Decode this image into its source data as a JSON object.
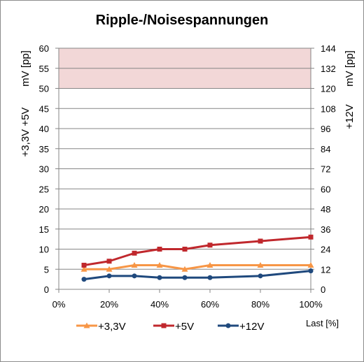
{
  "chart_data": {
    "type": "line",
    "title": "Ripple-/Noisespannungen",
    "xlabel": "Last [%]",
    "ylabel_left_line1": "+3,3V +5V",
    "ylabel_left_line2": "mV [pp]",
    "ylabel_right_line1": "+12V",
    "ylabel_right_line2": "mV [pp]",
    "xlim": [
      0,
      100
    ],
    "x_ticks": [
      "0%",
      "20%",
      "40%",
      "60%",
      "80%",
      "100%"
    ],
    "x_tick_values": [
      0,
      20,
      40,
      60,
      80,
      100
    ],
    "ylim_left": [
      0,
      60
    ],
    "y_ticks_left": [
      0,
      5,
      10,
      15,
      20,
      25,
      30,
      35,
      40,
      45,
      50,
      55,
      60
    ],
    "ylim_right": [
      0,
      144
    ],
    "y_ticks_right": [
      0,
      12,
      24,
      36,
      48,
      60,
      72,
      84,
      96,
      108,
      120,
      132,
      144
    ],
    "limit_band_left": [
      50,
      60
    ],
    "grid": true,
    "legend_position": "bottom",
    "series": [
      {
        "name": "+3,3V",
        "axis": "left",
        "color": "#f79646",
        "marker": "triangle",
        "x": [
          10,
          20,
          30,
          40,
          50,
          60,
          80,
          100
        ],
        "y": [
          5,
          5,
          6,
          6,
          5,
          6,
          6,
          6
        ]
      },
      {
        "name": "+5V",
        "axis": "left",
        "color": "#c0282d",
        "marker": "square",
        "x": [
          10,
          20,
          30,
          40,
          50,
          60,
          80,
          100
        ],
        "y": [
          6,
          7,
          9,
          10,
          10,
          11,
          12,
          13
        ]
      },
      {
        "name": "+12V",
        "axis": "right",
        "color": "#1f497d",
        "marker": "circle",
        "x": [
          10,
          20,
          30,
          40,
          50,
          60,
          80,
          100
        ],
        "y": [
          6,
          8,
          8,
          7,
          7,
          7,
          8,
          11
        ]
      }
    ],
    "colors": {
      "grid": "#868686",
      "limit_band": "#f2d7d7",
      "border": "#8c8c8c"
    }
  }
}
